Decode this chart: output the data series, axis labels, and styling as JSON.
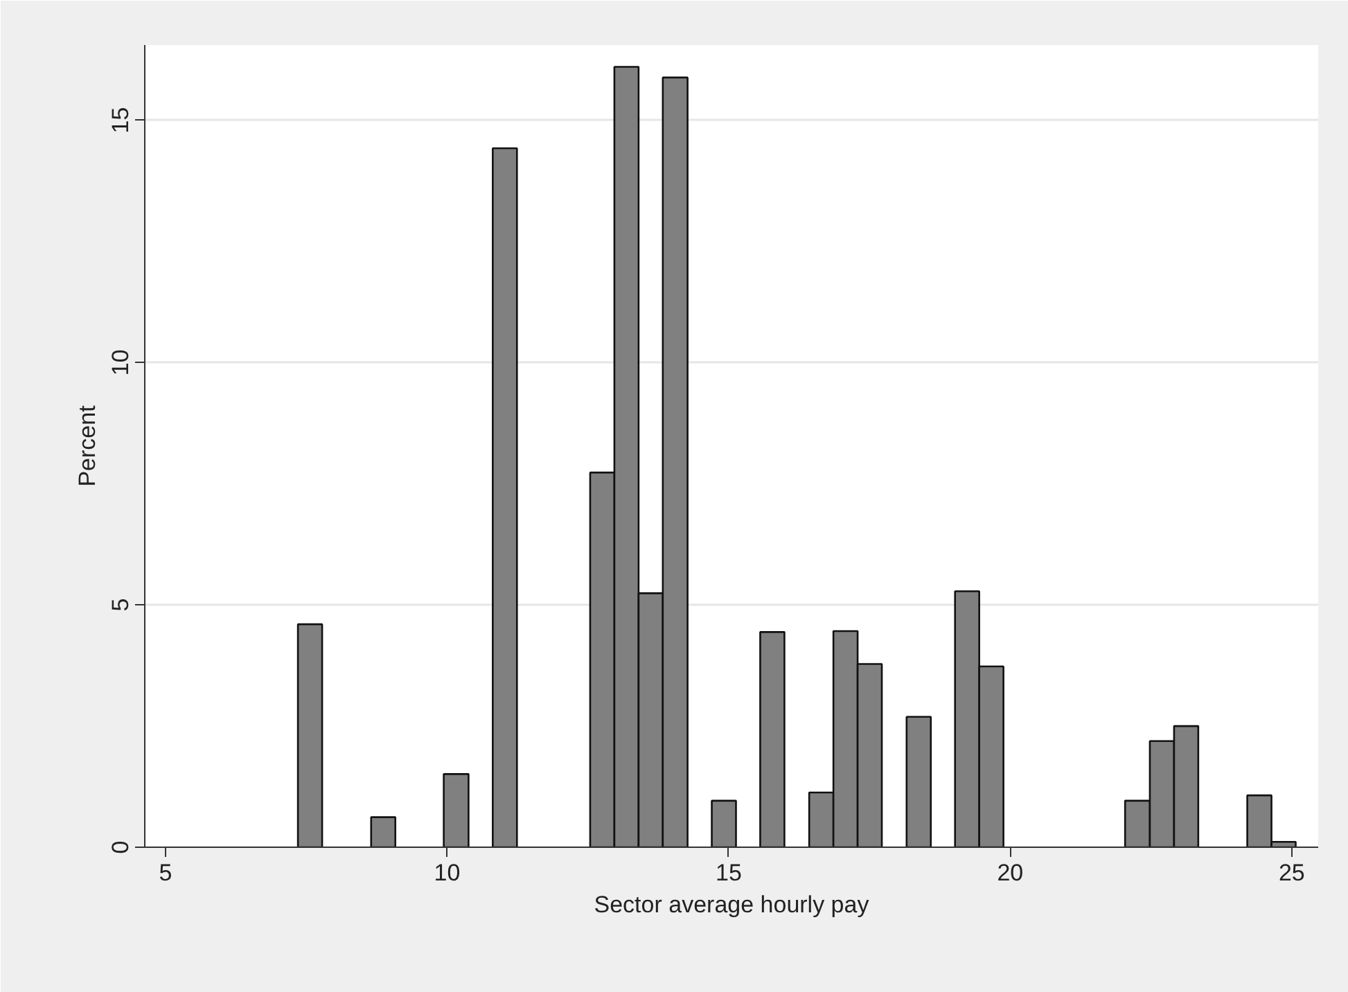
{
  "chart_data": {
    "type": "histogram",
    "xlabel": "Sector average hourly pay",
    "ylabel": "Percent",
    "bins": [
      7.35,
      7.78,
      8.65,
      9.08,
      9.94,
      10.38,
      10.81,
      11.24,
      12.54,
      12.97,
      13.4,
      13.83,
      14.27,
      14.7,
      15.13,
      15.56,
      15.99,
      16.43,
      16.86,
      17.29,
      17.72,
      18.16,
      18.59,
      19.02,
      19.45,
      19.88,
      22.04,
      22.48,
      22.91,
      23.34,
      24.21,
      24.64,
      25.07
    ],
    "values": [
      4.6,
      null,
      0.62,
      null,
      1.51,
      null,
      14.42,
      null,
      7.73,
      16.1,
      5.24,
      15.88,
      null,
      0.96,
      null,
      4.44,
      null,
      1.13,
      4.46,
      3.78,
      null,
      2.69,
      null,
      5.28,
      3.73,
      null,
      0.96,
      2.19,
      2.5,
      null,
      1.07,
      0.11
    ],
    "color": "#808080",
    "xlim": [
      4.63,
      25.47
    ],
    "ylim": [
      0,
      16.55
    ],
    "xticks": [
      5,
      10,
      15,
      20,
      25
    ],
    "yticks": [
      0,
      5,
      10,
      15
    ],
    "grid": "y"
  }
}
